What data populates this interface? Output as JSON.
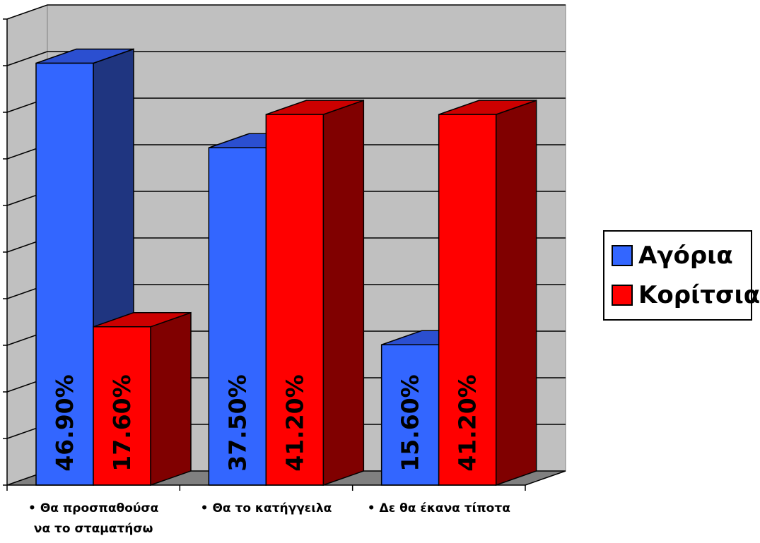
{
  "chart_data": {
    "type": "bar",
    "categories": [
      [
        "Θα προσπαθούσα",
        "να το σταματήσω"
      ],
      [
        "Θα το κατήγγειλα"
      ],
      [
        "Δε θα έκανα τίποτα"
      ]
    ],
    "series": [
      {
        "name": "Αγόρια",
        "values": [
          46.9,
          37.5,
          15.6
        ],
        "labels": [
          "46.90%",
          "37.50%",
          "15.60%"
        ],
        "color": "#3366ff",
        "side_color": "#1f3580",
        "top_color": "#2b4fd0"
      },
      {
        "name": "Κορίτσια",
        "values": [
          17.6,
          41.2,
          41.2
        ],
        "labels": [
          "17.60%",
          "41.20%",
          "41.20%"
        ],
        "color": "#ff0000",
        "side_color": "#800000",
        "top_color": "#cc0000"
      }
    ],
    "ylim": [
      0,
      50
    ],
    "grid": true,
    "legend_position": "right",
    "wall_color": "#c0c0c0",
    "floor_color": "#808080"
  }
}
